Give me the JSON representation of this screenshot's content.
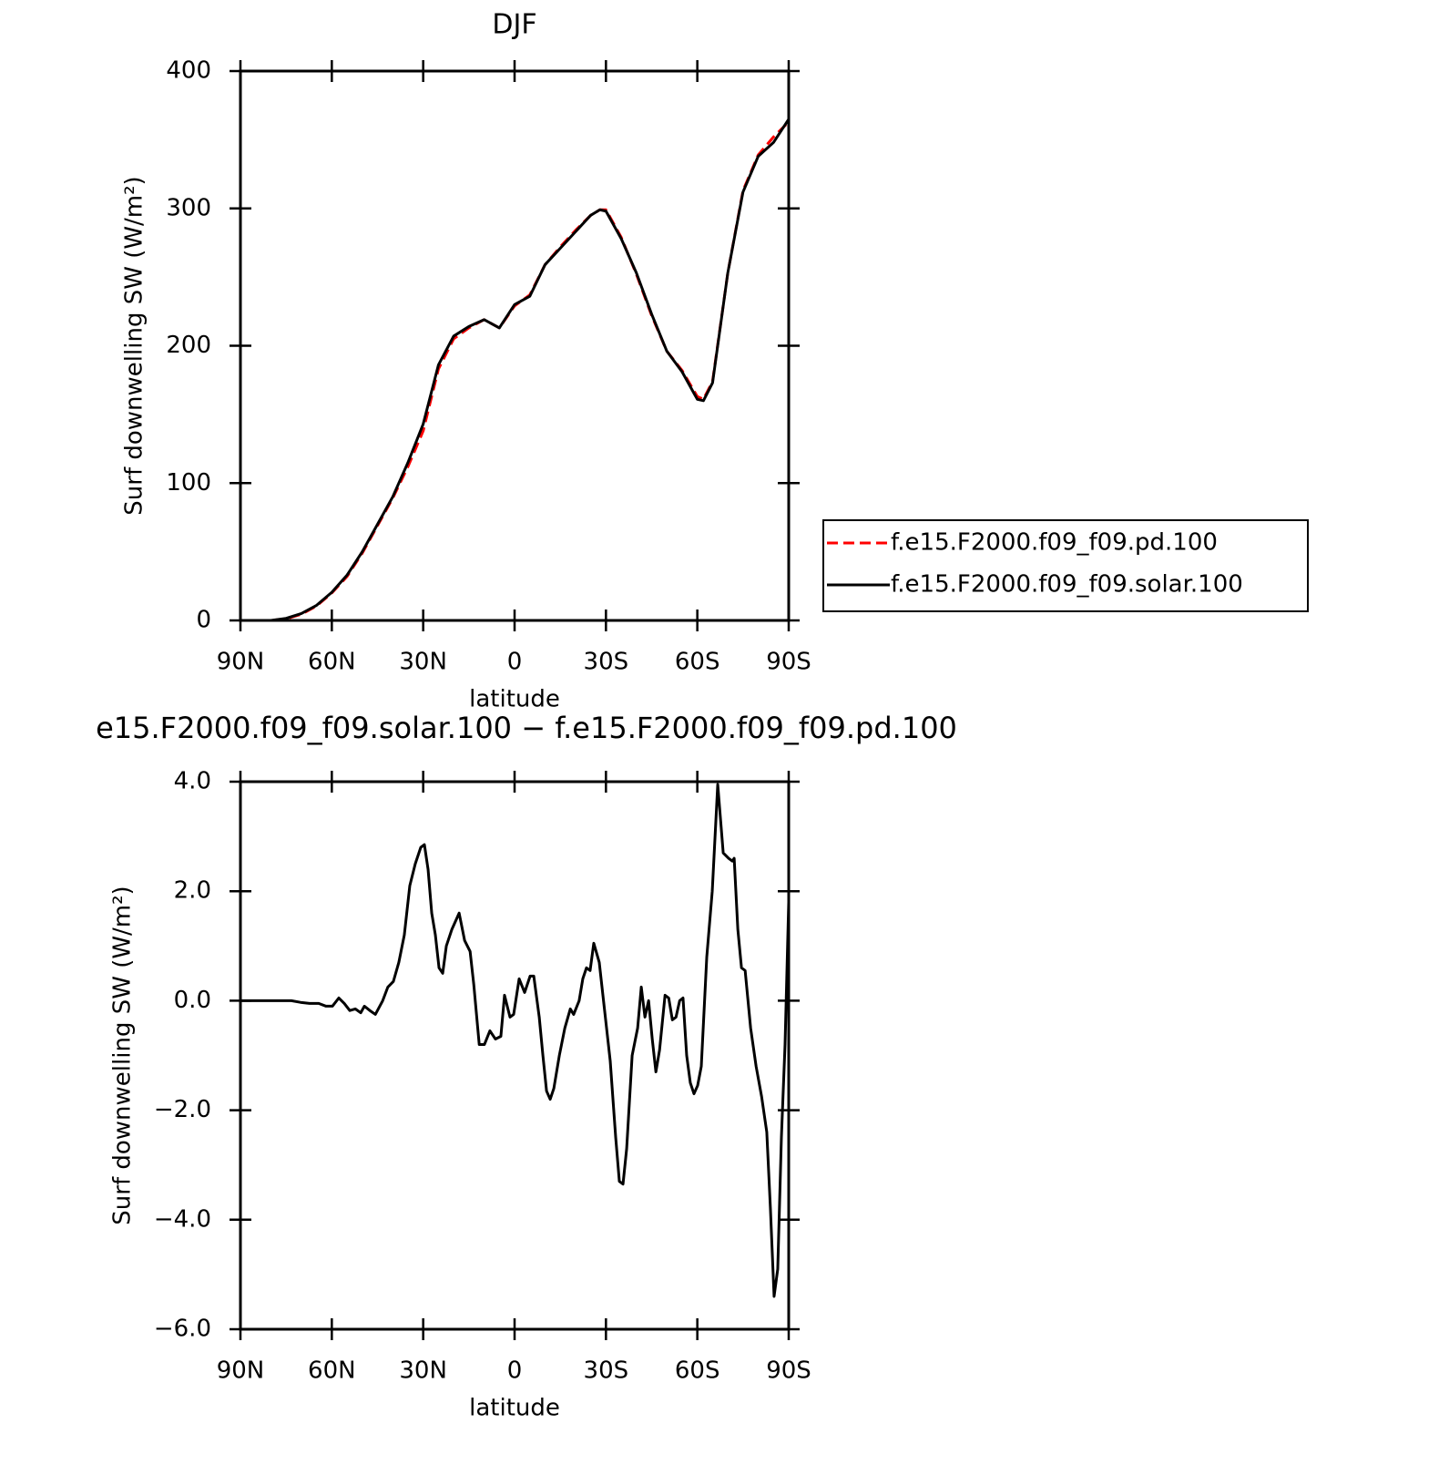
{
  "chart_data": [
    {
      "type": "line",
      "title": "DJF",
      "xlabel": "latitude",
      "ylabel": "Surf downwelling SW (W/m²)",
      "x": [
        90,
        85,
        80,
        75,
        70,
        65,
        60,
        55,
        50,
        45,
        40,
        35,
        30,
        25,
        20,
        15,
        10,
        5,
        0,
        -5,
        -10,
        -15,
        -20,
        -25,
        -28,
        -30,
        -35,
        -40,
        -45,
        -50,
        -55,
        -60,
        -62,
        -65,
        -70,
        -75,
        -80,
        -85,
        -90
      ],
      "series": [
        {
          "name": "f.e15.F2000.f09_f09.pd.100",
          "color": "#ff0000",
          "linestyle": "dashed",
          "values": [
            0,
            0,
            0,
            1.2,
            4.5,
            10.5,
            20,
            32,
            49,
            69,
            89,
            112,
            138,
            183,
            205,
            213,
            219,
            213,
            229,
            237,
            259,
            272,
            284,
            295,
            299,
            299,
            279,
            252,
            222,
            196,
            182,
            163,
            161,
            174,
            253,
            313,
            339,
            352,
            363
          ]
        },
        {
          "name": "f.e15.F2000.f09_f09.solar.100",
          "color": "#000000",
          "linestyle": "solid",
          "values": [
            0,
            0,
            0,
            1.5,
            5,
            11,
            20.5,
            33,
            50,
            70,
            90,
            115,
            143,
            186,
            207,
            214,
            219,
            213,
            230,
            236,
            259,
            271,
            283,
            295,
            299,
            298,
            278,
            253,
            223,
            196,
            181,
            161,
            160,
            173,
            253,
            312,
            338,
            348,
            365
          ]
        }
      ],
      "xlim": [
        90,
        -90
      ],
      "xticks": [
        {
          "value": 90,
          "label": "90N"
        },
        {
          "value": 60,
          "label": "60N"
        },
        {
          "value": 30,
          "label": "30N"
        },
        0,
        {
          "value": -30,
          "label": "30S"
        },
        {
          "value": -60,
          "label": "60S"
        },
        {
          "value": -90,
          "label": "90S"
        }
      ],
      "ylim": [
        0,
        400
      ],
      "yticks": [
        0,
        100,
        200,
        300,
        400
      ],
      "legend": "right"
    },
    {
      "type": "line",
      "title": "e15.F2000.f09_f09.solar.100 − f.e15.F2000.f09_f09.pd.100",
      "xlabel": "latitude",
      "ylabel": "Surf downwelling SW (W/m²)",
      "x": [
        90,
        82.2,
        73.3,
        70.3,
        67.3,
        64.3,
        61.9,
        59.8,
        57.7,
        55.9,
        54.1,
        52.3,
        50.5,
        49.3,
        47.5,
        45.7,
        43.3,
        41.6,
        39.8,
        38.0,
        36.2,
        34.4,
        32.6,
        30.8,
        29.6,
        28.4,
        27.2,
        26.0,
        24.8,
        23.6,
        22.4,
        20.6,
        18.2,
        16.4,
        14.6,
        13.4,
        11.6,
        9.9,
        8.1,
        6.3,
        4.5,
        3.3,
        1.5,
        0.3,
        -1.5,
        -3.3,
        -5.1,
        -6.3,
        -8.1,
        -9.3,
        -10.5,
        -11.7,
        -12.9,
        -14.7,
        -16.5,
        -18.3,
        -19.4,
        -21.2,
        -22.4,
        -23.6,
        -24.8,
        -26.0,
        -27.8,
        -29.6,
        -31.4,
        -33.2,
        -34.4,
        -35.6,
        -36.8,
        -38.6,
        -40.4,
        -41.6,
        -42.8,
        -44.0,
        -45.2,
        -46.4,
        -47.6,
        -49.4,
        -50.6,
        -51.8,
        -53.0,
        -54.2,
        -55.3,
        -56.5,
        -57.7,
        -58.9,
        -60.1,
        -61.3,
        -63.1,
        -64.9,
        -66.7,
        -68.5,
        -70.3,
        -71.5,
        -72.1,
        -73.3,
        -74.5,
        -75.7,
        -77.5,
        -79.3,
        -81.1,
        -82.8,
        -84.0,
        -85.2,
        -86.4,
        -87.6,
        -88.8,
        -90
      ],
      "series": [
        {
          "color": "#000000",
          "linestyle": "solid",
          "values": [
            0,
            0,
            0,
            -0.03,
            -0.05,
            -0.05,
            -0.1,
            -0.1,
            0.05,
            -0.05,
            -0.18,
            -0.15,
            -0.22,
            -0.1,
            -0.18,
            -0.25,
            0,
            0.25,
            0.35,
            0.7,
            1.2,
            2.1,
            2.5,
            2.8,
            2.85,
            2.4,
            1.6,
            1.2,
            0.6,
            0.5,
            1.0,
            1.3,
            1.6,
            1.1,
            0.9,
            0.3,
            -0.8,
            -0.8,
            -0.55,
            -0.7,
            -0.65,
            0.1,
            -0.3,
            -0.25,
            0.4,
            0.15,
            0.45,
            0.45,
            -0.3,
            -1.0,
            -1.65,
            -1.8,
            -1.6,
            -1.0,
            -0.5,
            -0.15,
            -0.25,
            0,
            0.4,
            0.6,
            0.55,
            1.05,
            0.7,
            -0.2,
            -1.1,
            -2.5,
            -3.3,
            -3.35,
            -2.7,
            -1.0,
            -0.5,
            0.25,
            -0.3,
            0,
            -0.7,
            -1.3,
            -0.9,
            0.1,
            0.05,
            -0.35,
            -0.3,
            0,
            0.05,
            -1.0,
            -1.5,
            -1.7,
            -1.55,
            -1.2,
            0.8,
            2.0,
            3.95,
            2.7,
            2.6,
            2.55,
            2.6,
            1.3,
            0.6,
            0.55,
            -0.5,
            -1.2,
            -1.75,
            -2.4,
            -3.8,
            -5.4,
            -4.9,
            -2.5,
            -0.8,
            1.8
          ]
        }
      ],
      "xlim": [
        90,
        -90
      ],
      "xticks": [
        {
          "value": 90,
          "label": "90N"
        },
        {
          "value": 60,
          "label": "60N"
        },
        {
          "value": 30,
          "label": "30N"
        },
        0,
        {
          "value": -30,
          "label": "30S"
        },
        {
          "value": -60,
          "label": "60S"
        },
        {
          "value": -90,
          "label": "90S"
        }
      ],
      "ylim": [
        -6,
        4
      ],
      "yticks": [
        {
          "value": -6,
          "label": "−6.0"
        },
        {
          "value": -4,
          "label": "−4.0"
        },
        {
          "value": -2,
          "label": "−2.0"
        },
        {
          "value": 0,
          "label": "0.0"
        },
        {
          "value": 2,
          "label": "2.0"
        },
        {
          "value": 4,
          "label": "4.0"
        }
      ]
    }
  ]
}
